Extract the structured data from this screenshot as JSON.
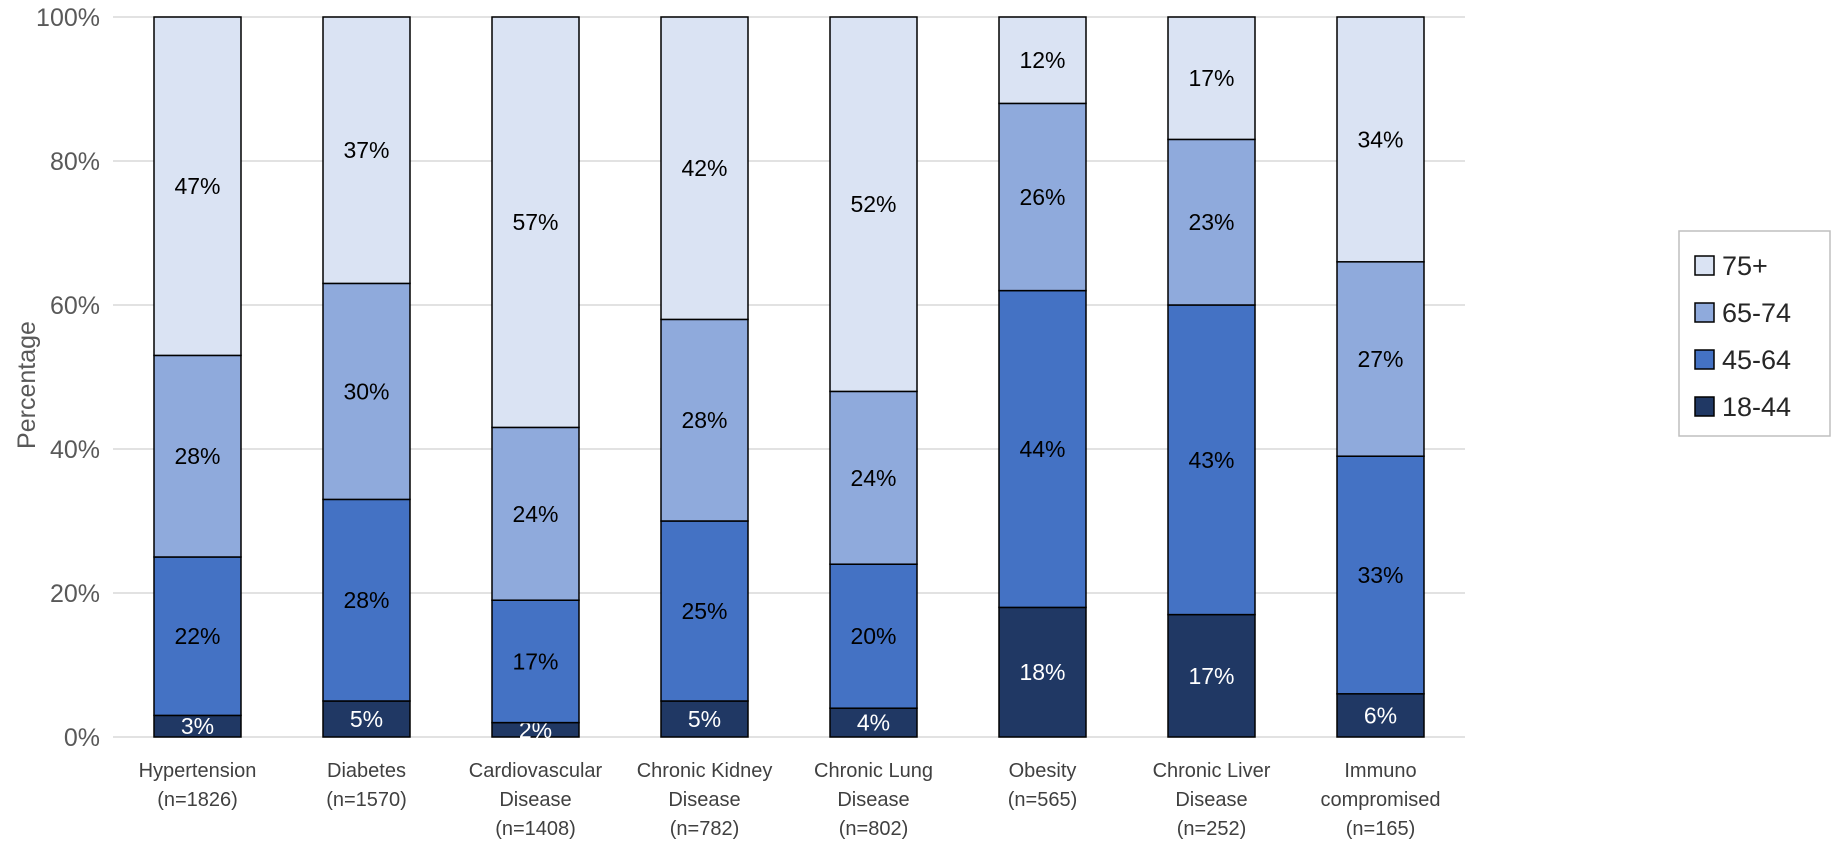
{
  "chart_data": {
    "type": "bar",
    "stacked": true,
    "categories": [
      [
        "Hypertension",
        "(n=1826)"
      ],
      [
        "Diabetes",
        "(n=1570)"
      ],
      [
        "Cardiovascular",
        "Disease",
        "(n=1408)"
      ],
      [
        "Chronic Kidney",
        "Disease",
        "(n=782)"
      ],
      [
        "Chronic Lung",
        "Disease",
        "(n=802)"
      ],
      [
        "Obesity",
        "(n=565)"
      ],
      [
        "Chronic Liver",
        "Disease",
        "(n=252)"
      ],
      [
        "Immuno",
        "compromised",
        "(n=165)"
      ]
    ],
    "series": [
      {
        "name": "18-44",
        "color": "#203864",
        "label_color": "#ffffff",
        "values": [
          3,
          5,
          2,
          5,
          4,
          18,
          17,
          6
        ]
      },
      {
        "name": "45-64",
        "color": "#4472c4",
        "label_color": "#000000",
        "values": [
          22,
          28,
          17,
          25,
          20,
          44,
          43,
          33
        ]
      },
      {
        "name": "65-74",
        "color": "#8faadc",
        "label_color": "#000000",
        "values": [
          28,
          30,
          24,
          28,
          24,
          26,
          23,
          27
        ]
      },
      {
        "name": "75+",
        "color": "#dae3f3",
        "label_color": "#000000",
        "values": [
          47,
          37,
          57,
          42,
          52,
          12,
          17,
          34
        ]
      }
    ],
    "ylabel": "Percentage",
    "ylim": [
      0,
      100
    ],
    "yticks": [
      "0%",
      "20%",
      "40%",
      "60%",
      "80%",
      "100%"
    ],
    "grid": true,
    "legend_position": "right",
    "legend_order": [
      "75+",
      "65-74",
      "45-64",
      "18-44"
    ],
    "colors": {
      "gridline": "#d9d9d9",
      "bar_border": "#000000"
    }
  }
}
